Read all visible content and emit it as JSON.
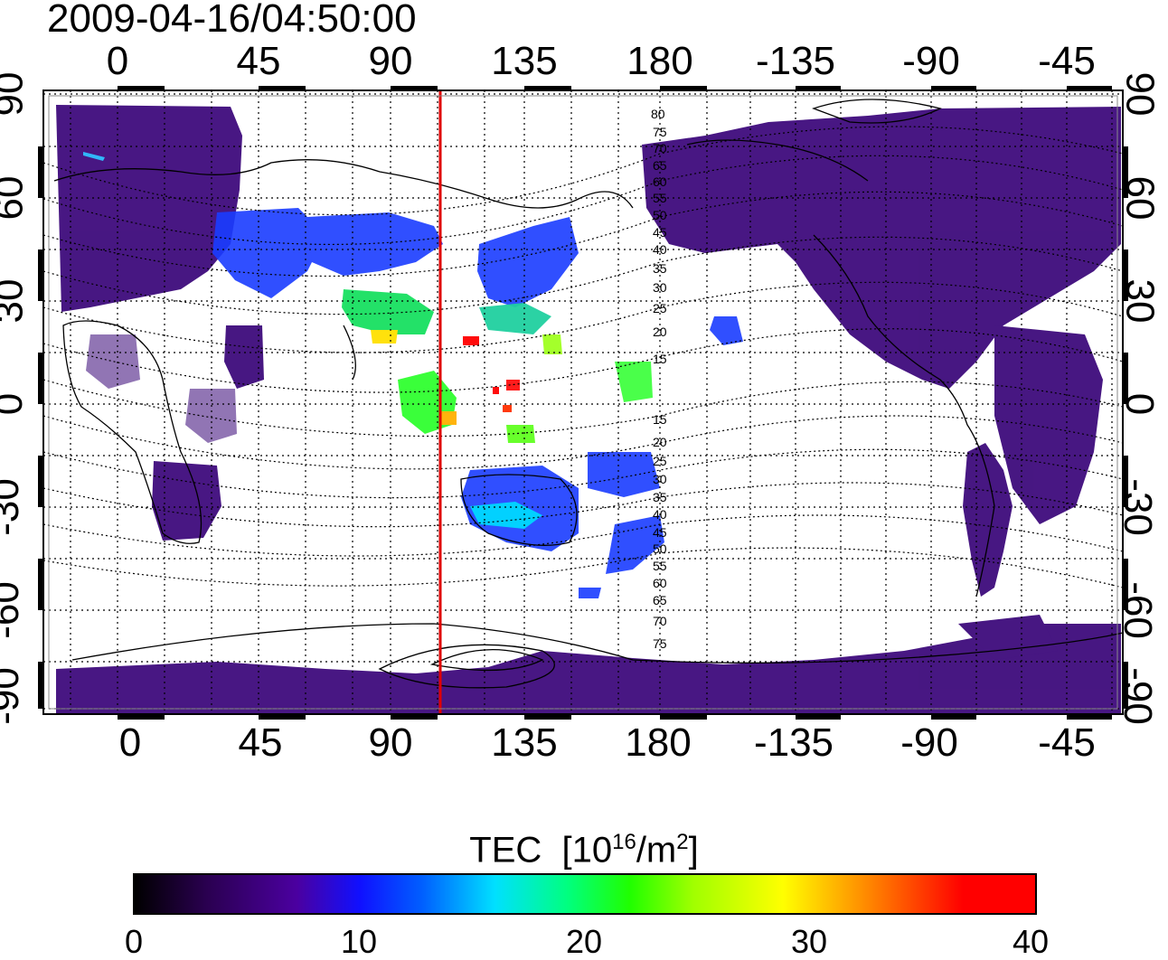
{
  "title": "2009-04-16/04:50:00",
  "map": {
    "x_ticks_top": [
      "0",
      "45",
      "90",
      "135",
      "180",
      "-135",
      "-90",
      "-45"
    ],
    "x_ticks_bottom": [
      "0",
      "45",
      "90",
      "135",
      "180",
      "-135",
      "-90",
      "-45"
    ],
    "y_ticks_left": [
      "90",
      "60",
      "30",
      "0",
      "-30",
      "-60",
      "-90"
    ],
    "y_ticks_right": [
      "90",
      "60",
      "30",
      "0",
      "-30",
      "-60",
      "-90"
    ],
    "meridian_line": {
      "longitude": 110,
      "color": "#e00000"
    },
    "magnetic_latitude_labels": [
      "80",
      "75",
      "70",
      "65",
      "60",
      "55",
      "50",
      "45",
      "40",
      "35",
      "30",
      "25",
      "20",
      "15",
      "15",
      "20",
      "25",
      "30",
      "35",
      "40",
      "45",
      "50",
      "55",
      "60",
      "65",
      "70",
      "75"
    ]
  },
  "colorbar": {
    "title": "TEC",
    "unit_base": "[10",
    "unit_exp": "16",
    "unit_mid": "/m",
    "unit_exp2": "2",
    "unit_end": "]",
    "ticks": [
      "0",
      "10",
      "20",
      "30",
      "40"
    ],
    "min": 0,
    "max": 40
  },
  "colors": {
    "frame": "#000000",
    "meridian": "#e00000",
    "low_tec": "#3d0a7a",
    "mid_tec": "#1040ff",
    "high_tec": "#ff0000"
  }
}
